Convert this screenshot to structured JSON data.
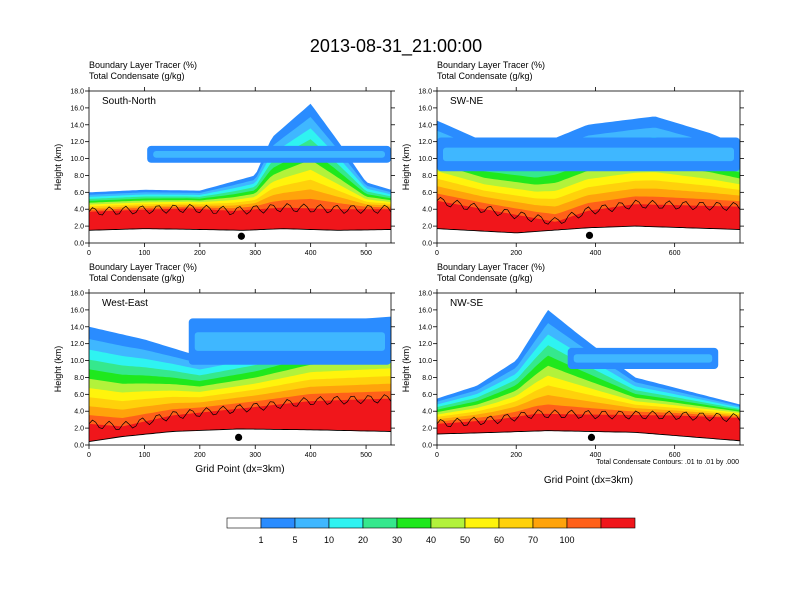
{
  "title": "2013-08-31_21:00:00",
  "var_label_1": "Boundary Layer Tracer    (%)",
  "var_label_2": "Total Condensate    (g/kg)",
  "y_axis_label": "Height (km)",
  "x_axis_label": "Grid Point (dx=3km)",
  "contour_note": "Total Condensate Contours: .01 to .01 by .000",
  "colors": {
    "tracer_levels": [
      "#ffffff",
      "#2a8cff",
      "#3fb7ff",
      "#2ff3f1",
      "#35e88d",
      "#1fe81d",
      "#b2f23b",
      "#fff40c",
      "#ffd10b",
      "#ffa30b",
      "#ff6019",
      "#f0161b"
    ],
    "contour_line": "#000000",
    "marker": "#000000"
  },
  "colorbar": {
    "labels": [
      "1",
      "5",
      "10",
      "20",
      "30",
      "40",
      "50",
      "60",
      "70",
      "100"
    ]
  },
  "chart_data": [
    {
      "type": "heatmap",
      "panel": "South-North",
      "title": "South-North",
      "xlabel": "",
      "ylabel": "Height (km)",
      "xlim": [
        0,
        545
      ],
      "ylim": [
        0,
        18
      ],
      "x_ticks": [
        "0",
        "100",
        "200",
        "300",
        "400",
        "500"
      ],
      "y_ticks": [
        "0.0",
        "2.0",
        "4.0",
        "6.0",
        "8.0",
        "10.0",
        "12.0",
        "14.0",
        "16.0",
        "18.0"
      ],
      "terrain_top_km": [
        [
          0,
          1.5
        ],
        [
          100,
          1.7
        ],
        [
          200,
          1.6
        ],
        [
          280,
          1.5
        ],
        [
          350,
          1.7
        ],
        [
          450,
          1.5
        ],
        [
          545,
          1.6
        ]
      ],
      "tracer_100_top_km": [
        [
          0,
          3.7
        ],
        [
          80,
          3.9
        ],
        [
          180,
          4.1
        ],
        [
          260,
          3.8
        ],
        [
          350,
          4.2
        ],
        [
          450,
          4.0
        ],
        [
          545,
          4.0
        ]
      ],
      "tracer_1_top_km": [
        [
          0,
          6.0
        ],
        [
          100,
          6.3
        ],
        [
          200,
          6.2
        ],
        [
          300,
          8.0
        ],
        [
          330,
          12.5
        ],
        [
          400,
          16.5
        ],
        [
          450,
          12.0
        ],
        [
          500,
          7.2
        ],
        [
          545,
          6.3
        ]
      ],
      "upper_cloud_km": {
        "x": [
          105,
          545
        ],
        "base": 9.5,
        "top": 11.5
      },
      "marker": {
        "x": 275,
        "height_km": 0.8
      }
    },
    {
      "type": "heatmap",
      "panel": "SW-NE",
      "title": "SW-NE",
      "xlabel": "",
      "ylabel": "Height (km)",
      "xlim": [
        0,
        765
      ],
      "ylim": [
        0,
        18
      ],
      "x_ticks": [
        "0",
        "200",
        "400",
        "600"
      ],
      "y_ticks": [
        "0.0",
        "2.0",
        "4.0",
        "6.0",
        "8.0",
        "10.0",
        "12.0",
        "14.0",
        "16.0",
        "18.0"
      ],
      "terrain_top_km": [
        [
          0,
          1.7
        ],
        [
          200,
          1.2
        ],
        [
          380,
          1.8
        ],
        [
          500,
          2.0
        ],
        [
          765,
          1.6
        ]
      ],
      "tracer_100_top_km": [
        [
          0,
          5.0
        ],
        [
          120,
          4.0
        ],
        [
          300,
          2.5
        ],
        [
          380,
          3.8
        ],
        [
          500,
          4.6
        ],
        [
          765,
          4.3
        ]
      ],
      "tracer_1_top_km": [
        [
          0,
          14.5
        ],
        [
          120,
          12.0
        ],
        [
          250,
          11.5
        ],
        [
          380,
          14.0
        ],
        [
          550,
          15.0
        ],
        [
          690,
          13.0
        ],
        [
          765,
          11.5
        ]
      ],
      "upper_cloud_km": {
        "x": [
          0,
          765
        ],
        "base": 8.5,
        "top": 12.5
      },
      "marker": {
        "x": 385,
        "height_km": 0.9
      }
    },
    {
      "type": "heatmap",
      "panel": "West-East",
      "title": "West-East",
      "xlabel": "Grid Point (dx=3km)",
      "ylabel": "Height (km)",
      "xlim": [
        0,
        545
      ],
      "ylim": [
        0,
        18
      ],
      "x_ticks": [
        "0",
        "100",
        "200",
        "300",
        "400",
        "500"
      ],
      "y_ticks": [
        "0.0",
        "2.0",
        "4.0",
        "6.0",
        "8.0",
        "10.0",
        "12.0",
        "14.0",
        "16.0",
        "18.0"
      ],
      "terrain_top_km": [
        [
          0,
          0.4
        ],
        [
          60,
          1.0
        ],
        [
          150,
          1.6
        ],
        [
          270,
          1.9
        ],
        [
          400,
          1.8
        ],
        [
          545,
          1.6
        ]
      ],
      "tracer_100_top_km": [
        [
          0,
          2.5
        ],
        [
          60,
          2.2
        ],
        [
          150,
          3.5
        ],
        [
          300,
          4.5
        ],
        [
          400,
          5.2
        ],
        [
          545,
          5.5
        ]
      ],
      "tracer_1_top_km": [
        [
          0,
          14.0
        ],
        [
          100,
          12.5
        ],
        [
          200,
          10.5
        ],
        [
          300,
          12.0
        ],
        [
          400,
          14.5
        ],
        [
          545,
          15.2
        ]
      ],
      "upper_cloud_km": {
        "x": [
          180,
          545
        ],
        "base": 9.5,
        "top": 15.0
      },
      "marker": {
        "x": 270,
        "height_km": 0.9
      }
    },
    {
      "type": "heatmap",
      "panel": "NW-SE",
      "title": "NW-SE",
      "xlabel": "Grid Point (dx=3km)",
      "ylabel": "Height (km)",
      "xlim": [
        0,
        765
      ],
      "ylim": [
        0,
        18
      ],
      "x_ticks": [
        "0",
        "200",
        "400",
        "600"
      ],
      "y_ticks": [
        "0.0",
        "2.0",
        "4.0",
        "6.0",
        "8.0",
        "10.0",
        "12.0",
        "14.0",
        "16.0",
        "18.0"
      ],
      "terrain_top_km": [
        [
          0,
          1.3
        ],
        [
          150,
          1.5
        ],
        [
          280,
          1.7
        ],
        [
          500,
          1.5
        ],
        [
          765,
          0.5
        ]
      ],
      "tracer_100_top_km": [
        [
          0,
          2.5
        ],
        [
          150,
          3.0
        ],
        [
          250,
          3.7
        ],
        [
          400,
          3.6
        ],
        [
          600,
          3.5
        ],
        [
          765,
          3.2
        ]
      ],
      "tracer_1_top_km": [
        [
          0,
          5.5
        ],
        [
          100,
          7.0
        ],
        [
          200,
          10.0
        ],
        [
          280,
          16.0
        ],
        [
          360,
          13.0
        ],
        [
          500,
          8.0
        ],
        [
          765,
          4.8
        ]
      ],
      "upper_cloud_km": {
        "x": [
          330,
          710
        ],
        "base": 9.0,
        "top": 11.5
      },
      "marker": {
        "x": 390,
        "height_km": 0.9
      }
    }
  ]
}
